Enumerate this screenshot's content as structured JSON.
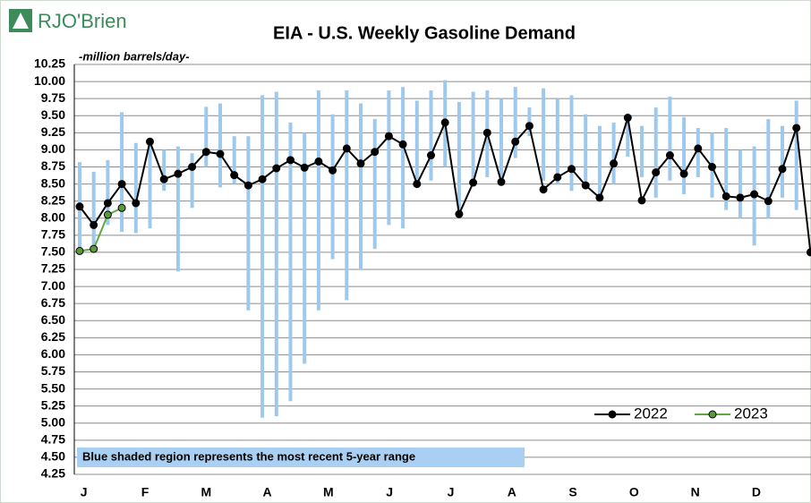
{
  "logo": "RJO'Brien",
  "chart_data": {
    "type": "line",
    "title": "EIA - U.S. Weekly Gasoline Demand",
    "subtitle": "-million barrels/day-",
    "month_labels": [
      "J",
      "F",
      "M",
      "A",
      "M",
      "J",
      "J",
      "A",
      "S",
      "O",
      "N",
      "D"
    ],
    "range_color": "#9dc9ef",
    "range_low": [
      7.5,
      7.6,
      7.9,
      7.8,
      7.78,
      7.85,
      8.4,
      7.22,
      8.15,
      8.75,
      8.45,
      8.5,
      6.65,
      5.08,
      5.1,
      5.32,
      5.87,
      6.65,
      7.4,
      6.8,
      7.25,
      7.55,
      7.9,
      7.85,
      8.5,
      8.55,
      8.75,
      8.1,
      8.5,
      8.6,
      8.55,
      8.88,
      9.2,
      8.55,
      8.5,
      8.4,
      8.45,
      8.3,
      8.5,
      8.9,
      8.6,
      8.3,
      8.55,
      8.35,
      8.6,
      8.3,
      8.12,
      8.0,
      7.6,
      8.0,
      8.3,
      8.12,
      null
    ],
    "range_high": [
      8.82,
      8.68,
      8.85,
      9.55,
      9.1,
      9.15,
      9.0,
      9.05,
      8.95,
      9.63,
      9.68,
      9.2,
      9.2,
      9.8,
      9.85,
      9.4,
      9.25,
      9.87,
      9.52,
      9.87,
      9.68,
      9.45,
      9.87,
      9.92,
      9.72,
      9.87,
      10.02,
      9.7,
      9.85,
      9.87,
      9.75,
      9.92,
      9.62,
      9.9,
      9.75,
      9.8,
      9.52,
      9.35,
      9.4,
      9.42,
      9.35,
      9.62,
      9.78,
      9.48,
      9.32,
      9.25,
      9.32,
      9.0,
      9.05,
      9.45,
      9.35,
      9.72,
      null
    ],
    "series": [
      {
        "name": "2022",
        "color": "#000000",
        "marker_color": "#000000",
        "values": [
          8.17,
          7.9,
          8.22,
          8.5,
          8.22,
          9.12,
          8.57,
          8.65,
          8.75,
          8.97,
          8.94,
          8.63,
          8.48,
          8.57,
          8.73,
          8.85,
          8.74,
          8.83,
          8.7,
          9.02,
          8.8,
          8.97,
          9.2,
          9.08,
          8.5,
          8.92,
          9.4,
          8.06,
          8.52,
          9.25,
          8.53,
          9.12,
          9.35,
          8.42,
          8.6,
          8.72,
          8.48,
          8.3,
          8.8,
          9.47,
          8.26,
          8.67,
          8.92,
          8.65,
          9.02,
          8.75,
          8.32,
          8.3,
          8.35,
          8.25,
          8.72,
          9.32,
          7.5
        ]
      },
      {
        "name": "2023",
        "color": "#5fa83c",
        "marker_color": "#5b9a3a",
        "values": [
          7.52,
          7.55,
          8.05,
          8.15
        ]
      }
    ],
    "ylim": [
      4.25,
      10.25
    ],
    "yticks": [
      4.25,
      {
        "value": 4.5,
        "label": "4.50"
      },
      4.75,
      {
        "value": 5,
        "label": "5.00"
      },
      5.25,
      {
        "value": 5.5,
        "label": "5.50"
      },
      5.75,
      {
        "value": 6,
        "label": "6.00"
      },
      6.25,
      {
        "value": 6.5,
        "label": "6.50"
      },
      6.75,
      {
        "value": 7,
        "label": "7.00"
      },
      7.25,
      {
        "value": 7.5,
        "label": "7.50"
      },
      7.75,
      {
        "value": 8,
        "label": "8.00"
      },
      8.25,
      {
        "value": 8.5,
        "label": "8.50"
      },
      8.75,
      {
        "value": 9,
        "label": "9.00"
      },
      9.25,
      {
        "value": 9.5,
        "label": "9.50"
      },
      9.75,
      {
        "value": 10,
        "label": "10.00"
      },
      10.25
    ],
    "grid": true,
    "note": "Blue shaded region represents the most recent 5-year range"
  }
}
